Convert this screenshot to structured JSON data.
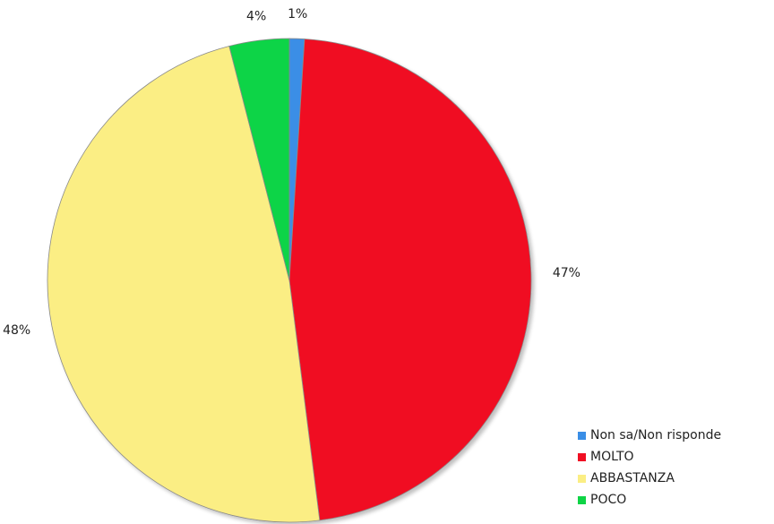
{
  "chart_data": {
    "type": "pie",
    "title": "",
    "slices": [
      {
        "label": "Non sa/Non risponde",
        "value": 1,
        "display": "1%",
        "color": "#3a8ee6"
      },
      {
        "label": "MOLTO",
        "value": 47,
        "display": "47%",
        "color": "#f00f23"
      },
      {
        "label": "ABBASTANZA",
        "value": 48,
        "display": "48%",
        "color": "#fbee84"
      },
      {
        "label": "POCO",
        "value": 4,
        "display": "4%",
        "color": "#0fd446"
      }
    ],
    "start_angle_deg": 0,
    "direction": "clockwise",
    "legend_position": "bottom-right"
  },
  "legend": {
    "items": [
      {
        "label": "Non sa/Non risponde",
        "color": "#3a8ee6"
      },
      {
        "label": "MOLTO",
        "color": "#f00f23"
      },
      {
        "label": "ABBASTANZA",
        "color": "#fbee84"
      },
      {
        "label": "POCO",
        "color": "#0fd446"
      }
    ]
  }
}
